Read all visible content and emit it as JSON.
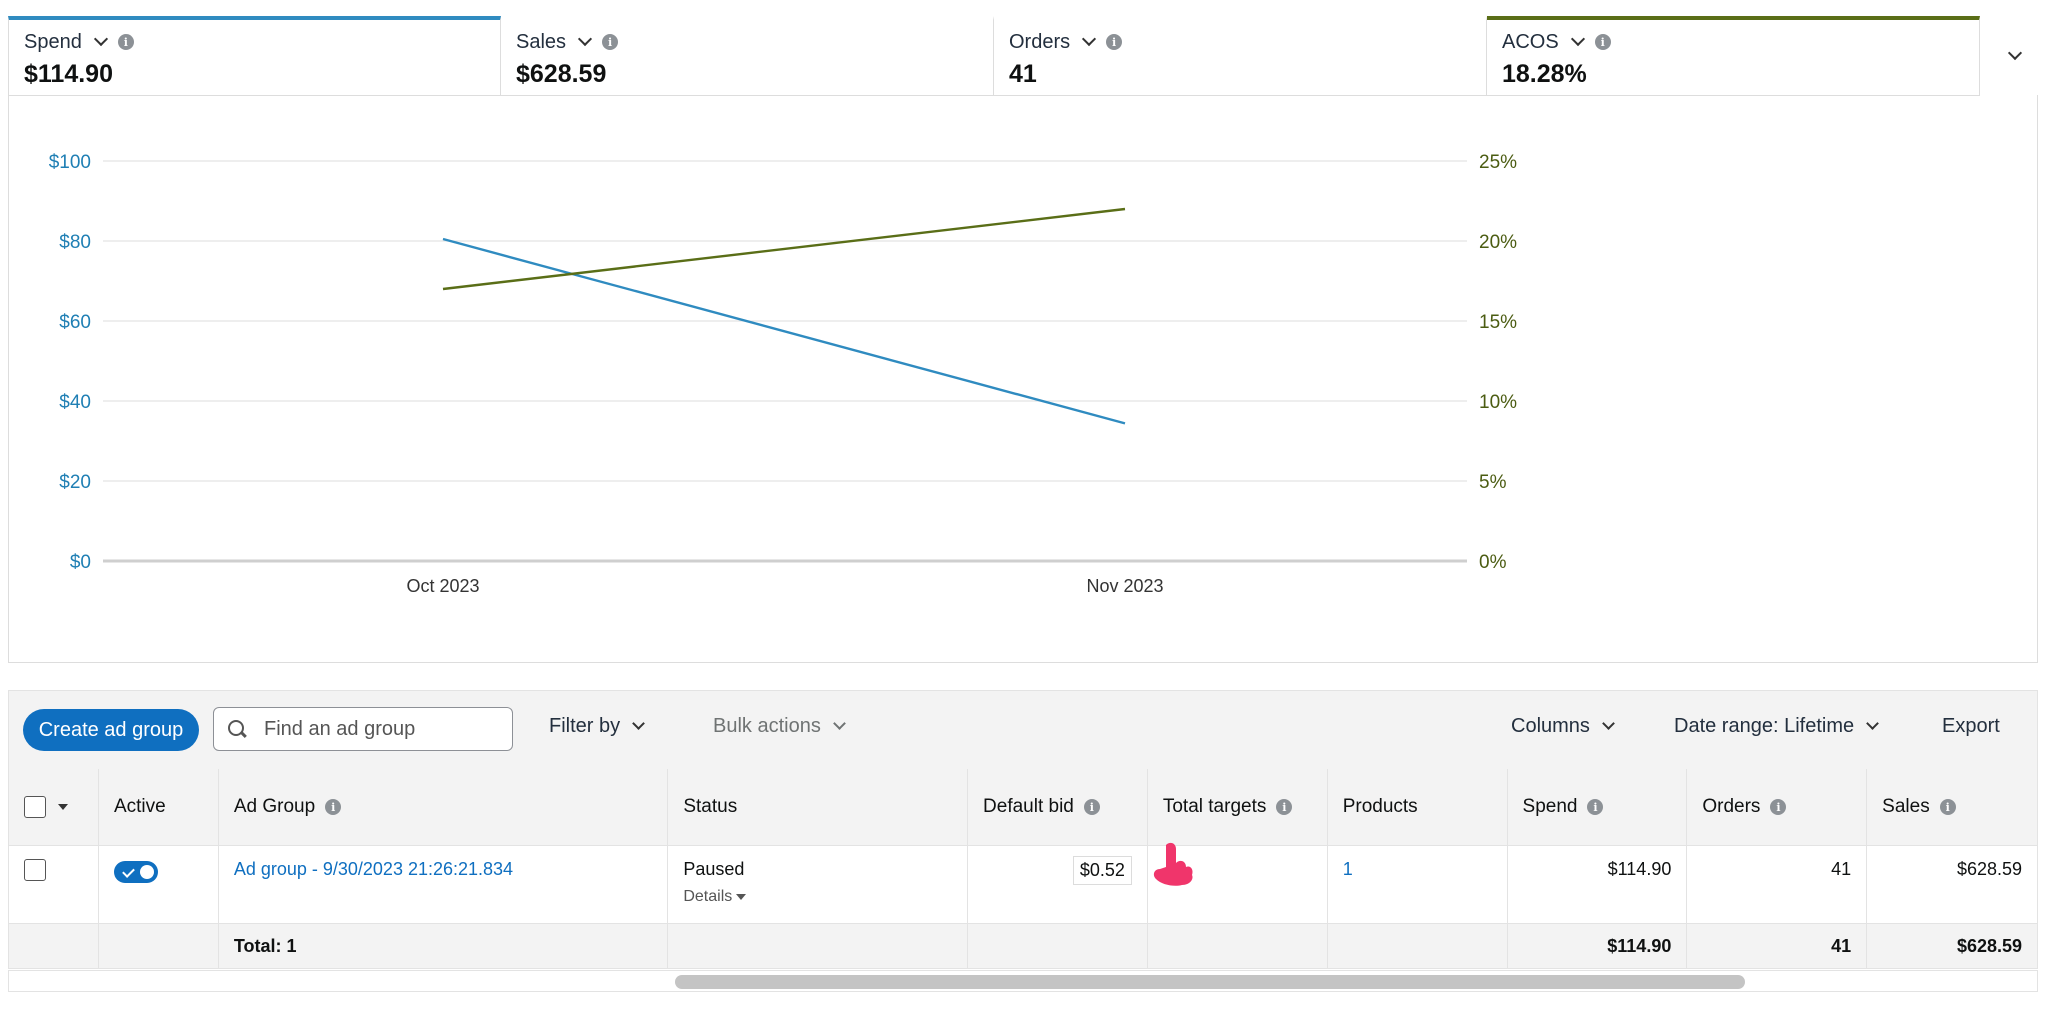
{
  "metrics": [
    {
      "label": "Spend",
      "value": "$114.90",
      "selected": true,
      "color": "#2f8bc0"
    },
    {
      "label": "Sales",
      "value": "$628.59",
      "selected": false
    },
    {
      "label": "Orders",
      "value": "41",
      "selected": false
    },
    {
      "label": "ACOS",
      "value": "18.28%",
      "selected": true,
      "color": "#5a6e17"
    }
  ],
  "chart_data": {
    "type": "line",
    "x": [
      "Oct 2023",
      "Nov 2023"
    ],
    "series": [
      {
        "name": "Spend",
        "axis": "left",
        "color": "#2f8bc0",
        "values": [
          80.5,
          34.4
        ]
      },
      {
        "name": "ACOS",
        "axis": "right",
        "color": "#5a6e17",
        "values": [
          17.0,
          22.0
        ]
      }
    ],
    "y_left": {
      "ticks": [
        "$0",
        "$20",
        "$40",
        "$60",
        "$80",
        "$100"
      ],
      "range": [
        0,
        100
      ]
    },
    "y_right": {
      "ticks": [
        "0%",
        "5%",
        "10%",
        "15%",
        "20%",
        "25%"
      ],
      "range": [
        0,
        25
      ]
    },
    "grid": true
  },
  "toolbar": {
    "create_label": "Create ad group",
    "search_placeholder": "Find an ad group",
    "filter_label": "Filter by",
    "bulk_label": "Bulk actions",
    "columns_label": "Columns",
    "date_range_label": "Date range: Lifetime",
    "export_label": "Export"
  },
  "table": {
    "headers": {
      "active": "Active",
      "ad_group": "Ad Group",
      "status": "Status",
      "default_bid": "Default bid",
      "total_targets": "Total targets",
      "products": "Products",
      "spend": "Spend",
      "orders": "Orders",
      "sales": "Sales"
    },
    "rows": [
      {
        "active": true,
        "ad_group": "Ad group - 9/30/2023 21:26:21.834",
        "status": "Paused",
        "details": "Details",
        "default_bid": "$0.52",
        "total_targets": "",
        "products": "1",
        "spend": "$114.90",
        "orders": "41",
        "sales": "$628.59"
      }
    ],
    "total": {
      "label": "Total: 1",
      "spend": "$114.90",
      "orders": "41",
      "sales": "$628.59"
    }
  }
}
